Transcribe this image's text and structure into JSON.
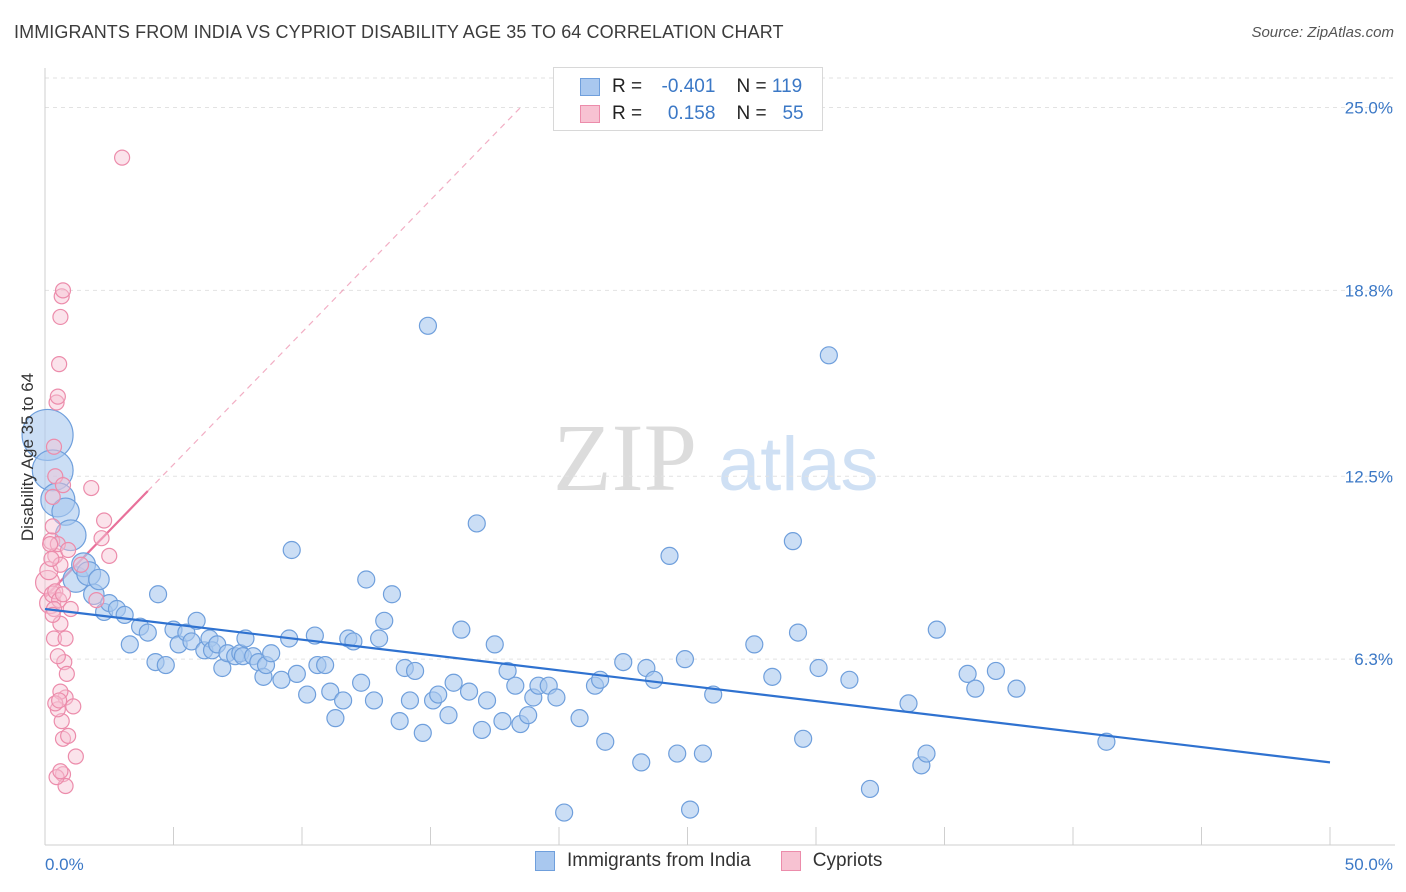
{
  "header": {
    "title": "IMMIGRANTS FROM INDIA VS CYPRIOT DISABILITY AGE 35 TO 64 CORRELATION CHART",
    "source": "Source: ZipAtlas.com"
  },
  "watermark": {
    "zip": "ZIP",
    "atlas": "atlas"
  },
  "legend": {
    "rows": [
      {
        "r_label": "R =",
        "r_value": "-0.401",
        "n_label": "N =",
        "n_value": "119",
        "color": "#8fb8ea"
      },
      {
        "r_label": "R =",
        "r_value": "0.158",
        "n_label": "N =",
        "n_value": "55",
        "color": "#f4a7be"
      }
    ]
  },
  "bottom_legend": {
    "series1": "Immigrants from India",
    "series2": "Cypriots"
  },
  "colors": {
    "blue_fill": "#a9c8ef",
    "blue_stroke": "#6f9fdc",
    "blue_line": "#2f72d0",
    "pink_fill": "#f7c2d2",
    "pink_stroke": "#ec8cab",
    "pink_line": "#e8709a",
    "tick": "#3b78c6",
    "grid": "#e2e2e2"
  },
  "chart_data": {
    "type": "scatter",
    "title": "IMMIGRANTS FROM INDIA VS CYPRIOT DISABILITY AGE 35 TO 64 CORRELATION CHART",
    "xlabel": "",
    "ylabel": "Disability Age 35 to 64",
    "xlim": [
      0,
      50
    ],
    "ylim": [
      0,
      26.0
    ],
    "x_tick_labels": [
      "0.0%",
      "50.0%"
    ],
    "y_ticks": [
      6.3,
      12.5,
      18.8,
      25.0
    ],
    "y_tick_labels": [
      "6.3%",
      "12.5%",
      "18.8%",
      "25.0%"
    ],
    "grid": true,
    "series": [
      {
        "name": "Immigrants from India",
        "r": -0.401,
        "n": 119,
        "trend": {
          "x": [
            0,
            50
          ],
          "y": [
            8.0,
            2.8
          ]
        },
        "points": [
          [
            0.1,
            13.9,
            3
          ],
          [
            0.3,
            12.7,
            2.4
          ],
          [
            0.5,
            11.7,
            2
          ],
          [
            0.8,
            11.3,
            1.6
          ],
          [
            1.0,
            10.5,
            1.8
          ],
          [
            1.2,
            9.0,
            1.5
          ],
          [
            1.5,
            9.5,
            1.4
          ],
          [
            1.7,
            9.2,
            1.4
          ],
          [
            1.9,
            8.5,
            1.2
          ],
          [
            2.1,
            9.0,
            1.2
          ],
          [
            2.3,
            7.9,
            1
          ],
          [
            2.5,
            8.2,
            1
          ],
          [
            2.8,
            8.0,
            1
          ],
          [
            3.1,
            7.8,
            1
          ],
          [
            3.3,
            6.8,
            1
          ],
          [
            3.7,
            7.4,
            1
          ],
          [
            4.0,
            7.2,
            1
          ],
          [
            4.3,
            6.2,
            1
          ],
          [
            4.4,
            8.5,
            1
          ],
          [
            4.7,
            6.1,
            1
          ],
          [
            5.0,
            7.3,
            1
          ],
          [
            5.2,
            6.8,
            1
          ],
          [
            5.5,
            7.2,
            1
          ],
          [
            5.7,
            6.9,
            1
          ],
          [
            5.9,
            7.6,
            1
          ],
          [
            6.2,
            6.6,
            1
          ],
          [
            6.4,
            7.0,
            1
          ],
          [
            6.5,
            6.6,
            1
          ],
          [
            6.7,
            6.8,
            1
          ],
          [
            6.9,
            6.0,
            1
          ],
          [
            7.1,
            6.5,
            1
          ],
          [
            7.4,
            6.4,
            1
          ],
          [
            7.6,
            6.5,
            1
          ],
          [
            7.7,
            6.4,
            1
          ],
          [
            7.8,
            7.0,
            1
          ],
          [
            8.1,
            6.4,
            1
          ],
          [
            8.3,
            6.2,
            1
          ],
          [
            8.5,
            5.7,
            1
          ],
          [
            8.6,
            6.1,
            1
          ],
          [
            8.8,
            6.5,
            1
          ],
          [
            9.2,
            5.6,
            1
          ],
          [
            9.5,
            7.0,
            1
          ],
          [
            9.6,
            10.0,
            1
          ],
          [
            9.8,
            5.8,
            1
          ],
          [
            10.2,
            5.1,
            1
          ],
          [
            10.5,
            7.1,
            1
          ],
          [
            10.6,
            6.1,
            1
          ],
          [
            10.9,
            6.1,
            1
          ],
          [
            11.1,
            5.2,
            1
          ],
          [
            11.3,
            4.3,
            1
          ],
          [
            11.6,
            4.9,
            1
          ],
          [
            11.8,
            7.0,
            1
          ],
          [
            12.0,
            6.9,
            1
          ],
          [
            12.3,
            5.5,
            1
          ],
          [
            12.5,
            9.0,
            1
          ],
          [
            12.8,
            4.9,
            1
          ],
          [
            13.0,
            7.0,
            1
          ],
          [
            13.2,
            7.6,
            1
          ],
          [
            13.5,
            8.5,
            1
          ],
          [
            13.8,
            4.2,
            1
          ],
          [
            14.0,
            6.0,
            1
          ],
          [
            14.2,
            4.9,
            1
          ],
          [
            14.4,
            5.9,
            1
          ],
          [
            14.7,
            3.8,
            1
          ],
          [
            14.9,
            17.6,
            1
          ],
          [
            15.1,
            4.9,
            1
          ],
          [
            15.3,
            5.1,
            1
          ],
          [
            15.7,
            4.4,
            1
          ],
          [
            15.9,
            5.5,
            1
          ],
          [
            16.2,
            7.3,
            1
          ],
          [
            16.5,
            5.2,
            1
          ],
          [
            16.8,
            10.9,
            1
          ],
          [
            17.0,
            3.9,
            1
          ],
          [
            17.2,
            4.9,
            1
          ],
          [
            17.5,
            6.8,
            1
          ],
          [
            17.8,
            4.2,
            1
          ],
          [
            18.0,
            5.9,
            1
          ],
          [
            18.3,
            5.4,
            1
          ],
          [
            18.5,
            4.1,
            1
          ],
          [
            18.8,
            4.4,
            1
          ],
          [
            19.0,
            5.0,
            1
          ],
          [
            19.2,
            5.4,
            1
          ],
          [
            19.6,
            5.4,
            1
          ],
          [
            19.9,
            5.0,
            1
          ],
          [
            20.2,
            1.1,
            1
          ],
          [
            20.8,
            4.3,
            1
          ],
          [
            21.4,
            5.4,
            1
          ],
          [
            21.6,
            5.6,
            1
          ],
          [
            21.8,
            3.5,
            1
          ],
          [
            22.5,
            6.2,
            1
          ],
          [
            23.2,
            2.8,
            1
          ],
          [
            23.4,
            6.0,
            1
          ],
          [
            23.7,
            5.6,
            1
          ],
          [
            24.3,
            9.8,
            1
          ],
          [
            24.6,
            3.1,
            1
          ],
          [
            24.9,
            6.3,
            1
          ],
          [
            25.1,
            1.2,
            1
          ],
          [
            25.6,
            3.1,
            1
          ],
          [
            26.0,
            5.1,
            1
          ],
          [
            27.6,
            6.8,
            1
          ],
          [
            28.3,
            5.7,
            1
          ],
          [
            29.1,
            10.3,
            1
          ],
          [
            29.3,
            7.2,
            1
          ],
          [
            29.5,
            3.6,
            1
          ],
          [
            30.1,
            6.0,
            1
          ],
          [
            30.5,
            16.6,
            1
          ],
          [
            31.3,
            5.6,
            1
          ],
          [
            32.1,
            1.9,
            1
          ],
          [
            33.6,
            4.8,
            1
          ],
          [
            34.1,
            2.7,
            1
          ],
          [
            34.3,
            3.1,
            1
          ],
          [
            34.7,
            7.3,
            1
          ],
          [
            35.9,
            5.8,
            1
          ],
          [
            36.2,
            5.3,
            1
          ],
          [
            37.0,
            5.9,
            1
          ],
          [
            37.8,
            5.3,
            1
          ],
          [
            41.3,
            3.5,
            1
          ]
        ]
      },
      {
        "name": "Cypriots",
        "r": 0.158,
        "n": 55,
        "trend": {
          "x": [
            0,
            4.0
          ],
          "y": [
            8.4,
            12.0
          ]
        },
        "trend_extension": {
          "x": [
            4.0,
            18.5
          ],
          "y": [
            12.0,
            25.0
          ]
        },
        "points": [
          [
            0.1,
            8.9,
            1.6
          ],
          [
            0.15,
            9.3,
            1.2
          ],
          [
            0.2,
            8.2,
            1.4
          ],
          [
            0.3,
            8.5,
            1.1
          ],
          [
            0.25,
            10.3,
            1.1
          ],
          [
            0.3,
            10.8,
            1
          ],
          [
            0.35,
            13.5,
            1
          ],
          [
            0.4,
            12.5,
            1
          ],
          [
            0.3,
            11.8,
            1
          ],
          [
            0.35,
            7.0,
            1
          ],
          [
            0.4,
            8.6,
            1
          ],
          [
            0.4,
            9.8,
            1
          ],
          [
            0.45,
            15.0,
            1
          ],
          [
            0.5,
            15.2,
            1
          ],
          [
            0.5,
            10.2,
            1
          ],
          [
            0.55,
            8.3,
            1
          ],
          [
            0.6,
            9.5,
            1
          ],
          [
            0.55,
            16.3,
            1
          ],
          [
            0.6,
            17.9,
            1
          ],
          [
            0.65,
            18.6,
            1
          ],
          [
            0.7,
            18.8,
            1
          ],
          [
            0.7,
            8.5,
            1
          ],
          [
            0.6,
            7.5,
            1
          ],
          [
            0.8,
            7.0,
            1
          ],
          [
            0.75,
            6.2,
            1
          ],
          [
            0.85,
            5.8,
            1
          ],
          [
            0.8,
            5.0,
            1
          ],
          [
            0.65,
            4.2,
            1
          ],
          [
            0.7,
            3.6,
            1
          ],
          [
            0.9,
            3.7,
            1
          ],
          [
            0.7,
            2.4,
            1
          ],
          [
            0.8,
            2.0,
            1
          ],
          [
            1.0,
            8.0,
            1
          ],
          [
            1.1,
            4.7,
            1
          ],
          [
            1.2,
            3.0,
            1
          ],
          [
            0.5,
            4.6,
            1
          ],
          [
            0.45,
            2.3,
            1
          ],
          [
            0.6,
            5.2,
            1
          ],
          [
            0.5,
            6.4,
            1
          ],
          [
            0.4,
            4.8,
            1
          ],
          [
            0.55,
            4.9,
            1
          ],
          [
            0.6,
            2.5,
            1
          ],
          [
            0.35,
            8.0,
            1
          ],
          [
            0.3,
            7.8,
            1
          ],
          [
            0.2,
            10.2,
            1
          ],
          [
            1.8,
            12.1,
            1
          ],
          [
            2.0,
            8.3,
            1
          ],
          [
            2.2,
            10.4,
            1
          ],
          [
            2.3,
            11.0,
            1
          ],
          [
            2.5,
            9.8,
            1
          ],
          [
            3.0,
            23.3,
            1
          ],
          [
            0.7,
            12.2,
            1
          ],
          [
            1.4,
            9.5,
            1
          ],
          [
            0.9,
            10.0,
            1
          ],
          [
            0.25,
            9.7,
            1
          ]
        ]
      }
    ]
  }
}
